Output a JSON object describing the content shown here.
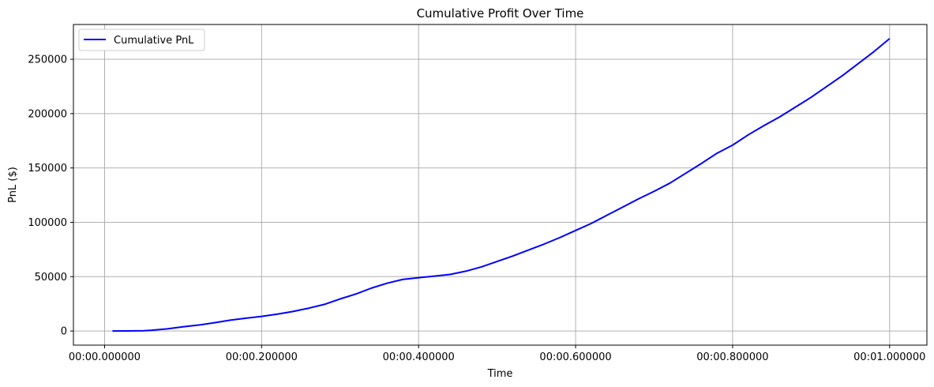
{
  "chart_data": {
    "type": "line",
    "title": "Cumulative Profit Over Time",
    "xlabel": "Time",
    "ylabel": "PnL ($)",
    "xlim": [
      -0.0397,
      1.0475
    ],
    "ylim": [
      -13000,
      282000
    ],
    "x_ticks": [
      {
        "value": 0.0,
        "label": "00:00.000000"
      },
      {
        "value": 0.2,
        "label": "00:00.200000"
      },
      {
        "value": 0.4,
        "label": "00:00.400000"
      },
      {
        "value": 0.6,
        "label": "00:00.600000"
      },
      {
        "value": 0.8,
        "label": "00:00.800000"
      },
      {
        "value": 1.0,
        "label": "00:01.000000"
      }
    ],
    "y_ticks": [
      {
        "value": 0,
        "label": "0"
      },
      {
        "value": 50000,
        "label": "50000"
      },
      {
        "value": 100000,
        "label": "100000"
      },
      {
        "value": 150000,
        "label": "150000"
      },
      {
        "value": 200000,
        "label": "200000"
      },
      {
        "value": 250000,
        "label": "250000"
      }
    ],
    "grid": true,
    "legend_position": "top-left",
    "series": [
      {
        "name": "Cumulative PnL",
        "color": "#0000ff",
        "points": [
          [
            0.01,
            0
          ],
          [
            0.03,
            100
          ],
          [
            0.05,
            300
          ],
          [
            0.06,
            700
          ],
          [
            0.08,
            2000
          ],
          [
            0.1,
            3900
          ],
          [
            0.12,
            5500
          ],
          [
            0.14,
            7600
          ],
          [
            0.16,
            10000
          ],
          [
            0.18,
            11800
          ],
          [
            0.2,
            13400
          ],
          [
            0.22,
            15500
          ],
          [
            0.24,
            18000
          ],
          [
            0.26,
            21000
          ],
          [
            0.28,
            24500
          ],
          [
            0.3,
            29500
          ],
          [
            0.32,
            34000
          ],
          [
            0.34,
            39500
          ],
          [
            0.36,
            44000
          ],
          [
            0.38,
            47500
          ],
          [
            0.4,
            49000
          ],
          [
            0.42,
            50500
          ],
          [
            0.44,
            52000
          ],
          [
            0.46,
            55000
          ],
          [
            0.48,
            59000
          ],
          [
            0.5,
            64000
          ],
          [
            0.52,
            69000
          ],
          [
            0.54,
            74500
          ],
          [
            0.56,
            80000
          ],
          [
            0.58,
            86000
          ],
          [
            0.6,
            92500
          ],
          [
            0.62,
            99000
          ],
          [
            0.64,
            106500
          ],
          [
            0.66,
            114000
          ],
          [
            0.68,
            121500
          ],
          [
            0.7,
            128500
          ],
          [
            0.72,
            136000
          ],
          [
            0.74,
            145000
          ],
          [
            0.76,
            154000
          ],
          [
            0.78,
            163500
          ],
          [
            0.8,
            171000
          ],
          [
            0.82,
            180500
          ],
          [
            0.84,
            189000
          ],
          [
            0.86,
            197000
          ],
          [
            0.88,
            206000
          ],
          [
            0.9,
            215000
          ],
          [
            0.92,
            225000
          ],
          [
            0.94,
            235000
          ],
          [
            0.96,
            246000
          ],
          [
            0.98,
            257000
          ],
          [
            1.0,
            269000
          ]
        ]
      }
    ]
  }
}
